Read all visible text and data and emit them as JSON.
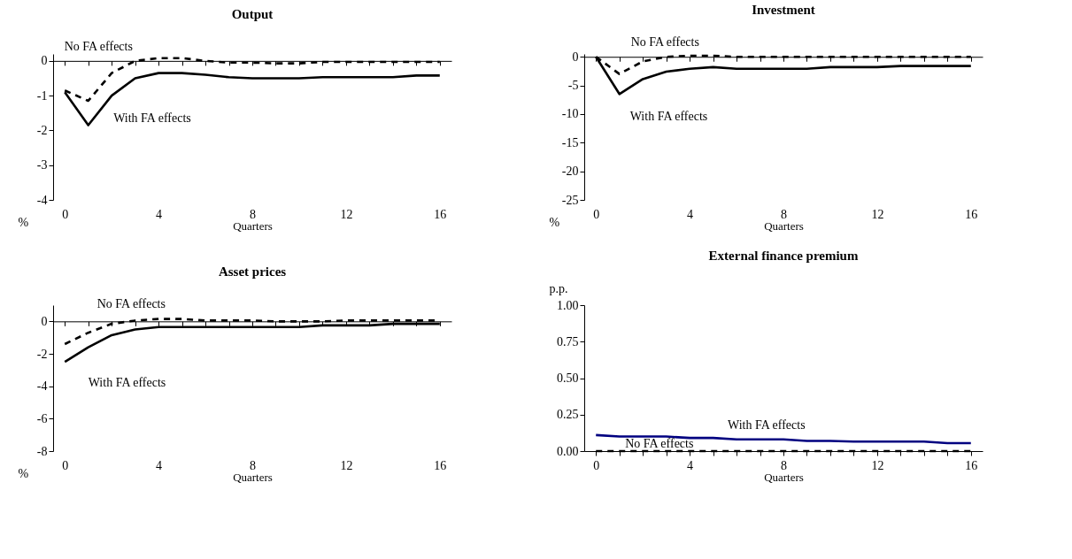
{
  "chart_data": [
    {
      "type": "line",
      "title": "Output",
      "xlabel": "Quarters",
      "ylabel": "%",
      "x": [
        0,
        1,
        2,
        3,
        4,
        5,
        6,
        7,
        8,
        9,
        10,
        11,
        12,
        13,
        14,
        15,
        16
      ],
      "xlim": [
        -0.5,
        16.5
      ],
      "xticks": [
        0,
        {
          "value": 1,
          "label": null
        },
        {
          "value": 2,
          "label": null
        },
        {
          "value": 3,
          "label": null
        },
        4,
        {
          "value": 5,
          "label": null
        },
        {
          "value": 6,
          "label": null
        },
        {
          "value": 7,
          "label": null
        },
        8,
        {
          "value": 9,
          "label": null
        },
        {
          "value": 10,
          "label": null
        },
        {
          "value": 11,
          "label": null
        },
        12,
        {
          "value": 13,
          "label": null
        },
        {
          "value": 14,
          "label": null
        },
        {
          "value": 15,
          "label": null
        },
        16
      ],
      "ylim": [
        -4,
        0.2
      ],
      "yticks": [
        -4,
        -3,
        -2,
        -1,
        0
      ],
      "series": [
        {
          "name": "With FA effects",
          "color": "#000000",
          "line_style": "solid",
          "values": [
            -0.9,
            -1.85,
            -1.0,
            -0.5,
            -0.35,
            -0.35,
            -0.4,
            -0.47,
            -0.5,
            -0.5,
            -0.5,
            -0.47,
            -0.47,
            -0.47,
            -0.47,
            -0.42,
            -0.42
          ]
        },
        {
          "name": "No FA effects",
          "color": "#000000",
          "line_style": "dashed",
          "values": [
            -0.85,
            -1.15,
            -0.35,
            0,
            0.08,
            0.08,
            0,
            -0.05,
            -0.05,
            -0.07,
            -0.07,
            -0.03,
            -0.03,
            -0.03,
            -0.03,
            -0.03,
            -0.03
          ]
        }
      ]
    },
    {
      "type": "line",
      "title": "Investment",
      "xlabel": "Quarters",
      "ylabel": "%",
      "x": [
        0,
        1,
        2,
        3,
        4,
        5,
        6,
        7,
        8,
        9,
        10,
        11,
        12,
        13,
        14,
        15,
        16
      ],
      "xlim": [
        -0.5,
        16.5
      ],
      "xticks": [
        0,
        {
          "value": 1,
          "label": null
        },
        {
          "value": 2,
          "label": null
        },
        {
          "value": 3,
          "label": null
        },
        4,
        {
          "value": 5,
          "label": null
        },
        {
          "value": 6,
          "label": null
        },
        {
          "value": 7,
          "label": null
        },
        8,
        {
          "value": 9,
          "label": null
        },
        {
          "value": 10,
          "label": null
        },
        {
          "value": 11,
          "label": null
        },
        12,
        {
          "value": 13,
          "label": null
        },
        {
          "value": 14,
          "label": null
        },
        {
          "value": 15,
          "label": null
        },
        16
      ],
      "ylim": [
        -25,
        0.5
      ],
      "yticks": [
        -25,
        -20,
        -15,
        -10,
        -5,
        0
      ],
      "series": [
        {
          "name": "With FA effects",
          "color": "#000000",
          "line_style": "solid",
          "values": [
            0,
            -6.5,
            -3.9,
            -2.6,
            -2.1,
            -1.8,
            -2.1,
            -2.1,
            -2.1,
            -2.1,
            -1.8,
            -1.8,
            -1.8,
            -1.6,
            -1.6,
            -1.6,
            -1.6
          ]
        },
        {
          "name": "No FA effects",
          "color": "#000000",
          "line_style": "dashed",
          "values": [
            0,
            -3,
            -0.8,
            0,
            0.2,
            0.2,
            0,
            0,
            0,
            0,
            0,
            0,
            0,
            0,
            0,
            0,
            0
          ]
        }
      ]
    },
    {
      "type": "line",
      "title": "Asset prices",
      "xlabel": "Quarters",
      "ylabel": "%",
      "x": [
        0,
        1,
        2,
        3,
        4,
        5,
        6,
        7,
        8,
        9,
        10,
        11,
        12,
        13,
        14,
        15,
        16
      ],
      "xlim": [
        -0.5,
        16.5
      ],
      "xticks": [
        0,
        {
          "value": 1,
          "label": null
        },
        {
          "value": 2,
          "label": null
        },
        {
          "value": 3,
          "label": null
        },
        4,
        {
          "value": 5,
          "label": null
        },
        {
          "value": 6,
          "label": null
        },
        {
          "value": 7,
          "label": null
        },
        8,
        {
          "value": 9,
          "label": null
        },
        {
          "value": 10,
          "label": null
        },
        {
          "value": 11,
          "label": null
        },
        12,
        {
          "value": 13,
          "label": null
        },
        {
          "value": 14,
          "label": null
        },
        {
          "value": 15,
          "label": null
        },
        16
      ],
      "ylim": [
        -8,
        1
      ],
      "yticks": [
        -8,
        -6,
        -4,
        -2,
        0
      ],
      "series": [
        {
          "name": "With FA effects",
          "color": "#000000",
          "line_style": "solid",
          "values": [
            -2.5,
            -1.6,
            -0.85,
            -0.5,
            -0.35,
            -0.35,
            -0.35,
            -0.35,
            -0.35,
            -0.35,
            -0.35,
            -0.25,
            -0.25,
            -0.25,
            -0.15,
            -0.15,
            -0.15
          ]
        },
        {
          "name": "No FA effects",
          "color": "#000000",
          "line_style": "dashed",
          "values": [
            -1.4,
            -0.7,
            -0.15,
            0.05,
            0.15,
            0.15,
            0.05,
            0.05,
            0.05,
            0,
            0,
            0,
            0.05,
            0.05,
            0.05,
            0.05,
            0.05
          ]
        }
      ]
    },
    {
      "type": "line",
      "title": "External finance premium",
      "xlabel": "Quarters",
      "ylabel": "p.p.",
      "x": [
        0,
        1,
        2,
        3,
        4,
        5,
        6,
        7,
        8,
        9,
        10,
        11,
        12,
        13,
        14,
        15,
        16
      ],
      "xlim": [
        -0.5,
        16.5
      ],
      "xticks": [
        0,
        {
          "value": 1,
          "label": null
        },
        {
          "value": 2,
          "label": null
        },
        {
          "value": 3,
          "label": null
        },
        4,
        {
          "value": 5,
          "label": null
        },
        {
          "value": 6,
          "label": null
        },
        {
          "value": 7,
          "label": null
        },
        8,
        {
          "value": 9,
          "label": null
        },
        {
          "value": 10,
          "label": null
        },
        {
          "value": 11,
          "label": null
        },
        12,
        {
          "value": 13,
          "label": null
        },
        {
          "value": 14,
          "label": null
        },
        {
          "value": 15,
          "label": null
        },
        16
      ],
      "ylim": [
        0,
        1
      ],
      "yticks": [
        {
          "value": 0,
          "label": "0.00"
        },
        {
          "value": 0.25,
          "label": "0.25"
        },
        {
          "value": 0.5,
          "label": "0.50"
        },
        {
          "value": 0.75,
          "label": "0.75"
        },
        {
          "value": 1,
          "label": "1.00"
        }
      ],
      "series": [
        {
          "name": "With FA effects",
          "color": "#000080",
          "line_style": "solid",
          "values": [
            0.11,
            0.1,
            0.1,
            0.1,
            0.09,
            0.09,
            0.08,
            0.08,
            0.08,
            0.07,
            0.07,
            0.065,
            0.065,
            0.065,
            0.065,
            0.055,
            0.055
          ]
        },
        {
          "name": "No FA effects",
          "color": "#000000",
          "line_style": "dashed",
          "values": [
            0,
            0,
            0,
            0,
            0,
            0,
            0,
            0,
            0,
            0,
            0,
            0,
            0,
            0,
            0,
            0,
            0
          ]
        }
      ]
    }
  ]
}
